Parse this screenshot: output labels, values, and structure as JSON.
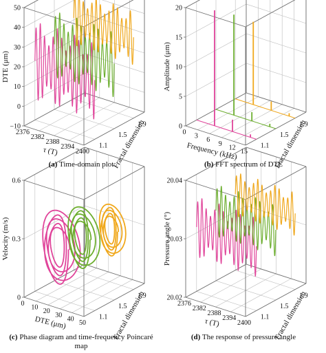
{
  "colors": {
    "pink": "#e0449a",
    "green": "#6cae2e",
    "orange": "#f0a81c",
    "frame": "#6d6d6d",
    "grid": "#bcbcbc"
  },
  "chart_data": [
    {
      "type": "line",
      "panel": "a",
      "caption_letter": "(a)",
      "caption_text": " Time-domain plot",
      "xlabel": "τ (T)",
      "ylabel": "DTE (μm)",
      "zlabel": "Fractal dimension",
      "x_ticks": [
        "2376",
        "2382",
        "2388",
        "2394",
        "2400"
      ],
      "y_ticks": [
        "−10",
        "0",
        "10",
        "20",
        "30",
        "40",
        "50"
      ],
      "z_ticks": [
        "1.1",
        "1.5",
        "1.9"
      ],
      "xlim": [
        2376,
        2400
      ],
      "ylim": [
        -10,
        50
      ],
      "series": [
        {
          "fractal_dimension": 1.1,
          "color": "pink",
          "mean": 20,
          "amplitude": 20,
          "cycles": 14
        },
        {
          "fractal_dimension": 1.5,
          "color": "green",
          "mean": 23,
          "amplitude": 17,
          "cycles": 14
        },
        {
          "fractal_dimension": 1.9,
          "color": "orange",
          "mean": 31,
          "amplitude": 14,
          "cycles": 14
        }
      ]
    },
    {
      "type": "bar",
      "panel": "b",
      "caption_letter": "(b)",
      "caption_text": " FFT spectrum of DTE",
      "xlabel": "Frequency (kHz)",
      "ylabel": "Amplitude (μm)",
      "zlabel": "Fractal dimension",
      "x_ticks": [
        "0",
        "3",
        "6",
        "9",
        "12",
        "15"
      ],
      "y_ticks": [
        "0",
        "5",
        "10",
        "15",
        "20"
      ],
      "z_ticks": [
        "1.1",
        "1.5",
        "1.9"
      ],
      "xlim": [
        0,
        15
      ],
      "ylim": [
        0,
        20
      ],
      "series": [
        {
          "fractal_dimension": 1.1,
          "color": "pink",
          "peaks": [
            [
              4.5,
              19.5
            ],
            [
              9.0,
              2.0
            ],
            [
              13.5,
              0.5
            ]
          ]
        },
        {
          "fractal_dimension": 1.5,
          "color": "green",
          "peaks": [
            [
              4.5,
              17.0
            ],
            [
              9.0,
              1.5
            ],
            [
              13.5,
              0.5
            ]
          ]
        },
        {
          "fractal_dimension": 1.9,
          "color": "orange",
          "peaks": [
            [
              4.5,
              14.0
            ],
            [
              9.0,
              1.5
            ],
            [
              13.5,
              0.5
            ]
          ]
        }
      ]
    },
    {
      "type": "line",
      "panel": "c",
      "caption_letter": "(c)",
      "caption_text": " Phase diagram and time-frequency Poincaré map",
      "xlabel": "DTE (μm)",
      "ylabel": "Velocity (m/s)",
      "zlabel": "Fractal dimension",
      "x_ticks": [
        "0",
        "10",
        "20",
        "30",
        "40",
        "50"
      ],
      "y_ticks": [
        "0",
        "0.3",
        "0.6"
      ],
      "z_ticks": [
        "1.1",
        "1.5",
        "1.9"
      ],
      "xlim": [
        0,
        50
      ],
      "ylim": [
        -0.3,
        0.7
      ],
      "series": [
        {
          "fractal_dimension": 1.1,
          "color": "pink",
          "center_dte": 20,
          "radius_dte": 20,
          "radius_velocity": 0.6
        },
        {
          "fractal_dimension": 1.5,
          "color": "green",
          "center_dte": 23,
          "radius_dte": 17,
          "radius_velocity": 0.5
        },
        {
          "fractal_dimension": 1.9,
          "color": "orange",
          "center_dte": 31,
          "radius_dte": 14,
          "radius_velocity": 0.42
        }
      ]
    },
    {
      "type": "line",
      "panel": "d",
      "caption_letter": "(d)",
      "caption_text": " The response of pressure angle",
      "xlabel": "τ (T)",
      "ylabel": "Pressure angle (°)",
      "zlabel": "Fractal dimension",
      "x_ticks": [
        "2376",
        "2382",
        "2388",
        "2394",
        "2400"
      ],
      "y_ticks": [
        "20.02",
        "20.03",
        "20.04"
      ],
      "z_ticks": [
        "1.1",
        "1.5",
        "1.9"
      ],
      "xlim": [
        2376,
        2400
      ],
      "ylim": [
        20.02,
        20.04
      ],
      "series": [
        {
          "fractal_dimension": 1.1,
          "color": "pink",
          "mean": 20.031,
          "amplitude": 0.0052,
          "cycles": 14
        },
        {
          "fractal_dimension": 1.5,
          "color": "green",
          "mean": 20.032,
          "amplitude": 0.0045,
          "cycles": 14
        },
        {
          "fractal_dimension": 1.9,
          "color": "orange",
          "mean": 20.033,
          "amplitude": 0.0038,
          "cycles": 14
        }
      ]
    }
  ]
}
